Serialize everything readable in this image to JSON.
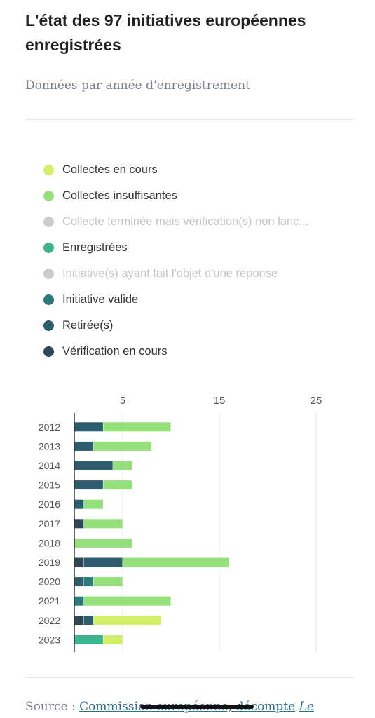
{
  "header": {
    "title": "L'état des 97 initiatives européennes enregistrées",
    "subtitle": "Données par année d'enregistrement"
  },
  "source": {
    "prefix": "Source : ",
    "link_text": "Commission européenne, décompte",
    "suffix": "Le"
  },
  "chart_data": {
    "type": "bar",
    "orientation": "horizontal",
    "stacked": true,
    "categories": [
      "2012",
      "2013",
      "2014",
      "2015",
      "2016",
      "2017",
      "2018",
      "2019",
      "2020",
      "2021",
      "2022",
      "2023"
    ],
    "xlim": [
      0,
      28
    ],
    "x_ticks": [
      5,
      15,
      25
    ],
    "grid": true,
    "legend_position": "top",
    "series": [
      {
        "name": "Vérification en cours",
        "color": "#2f4858",
        "active": true,
        "values": [
          0,
          0,
          0,
          0,
          0,
          1,
          0,
          1,
          0,
          0,
          1,
          0
        ]
      },
      {
        "name": "Retirée(s)",
        "color": "#2d5d6f",
        "active": true,
        "values": [
          3,
          2,
          4,
          3,
          1,
          0,
          0,
          4,
          1,
          0,
          1,
          0
        ]
      },
      {
        "name": "Initiative valide",
        "color": "#2b7b7a",
        "active": true,
        "values": [
          0,
          0,
          0,
          0,
          0,
          0,
          0,
          0,
          1,
          1,
          0,
          0
        ]
      },
      {
        "name": "Initiative(s) ayant fait l'objet d'une réponse",
        "color": "#cccccc",
        "active": false,
        "values": [
          0,
          0,
          0,
          0,
          0,
          0,
          0,
          0,
          0,
          0,
          0,
          0
        ]
      },
      {
        "name": "Enregistrées",
        "color": "#3bb48f",
        "active": true,
        "values": [
          0,
          0,
          0,
          0,
          0,
          0,
          0,
          0,
          0,
          0,
          0,
          3
        ]
      },
      {
        "name": "Collecte terminée mais vérification(s) non lancée(s)",
        "color": "#cccccc",
        "active": false,
        "values": [
          0,
          0,
          0,
          0,
          0,
          0,
          0,
          0,
          0,
          0,
          0,
          0
        ]
      },
      {
        "name": "Collectes insuffisantes",
        "color": "#95e07a",
        "active": true,
        "values": [
          7,
          6,
          2,
          3,
          2,
          4,
          6,
          11,
          3,
          9,
          0,
          0
        ]
      },
      {
        "name": "Collectes en cours",
        "color": "#d3f06b",
        "active": true,
        "values": [
          0,
          0,
          0,
          0,
          0,
          0,
          0,
          0,
          0,
          0,
          7,
          2
        ]
      }
    ]
  },
  "legend": [
    {
      "label": "Collectes en cours",
      "color": "#d3f06b",
      "active": true
    },
    {
      "label": "Collectes insuffisantes",
      "color": "#95e07a",
      "active": true
    },
    {
      "label": "Collecte terminée mais vérification(s) non lanc...",
      "color": "#cccccc",
      "active": false
    },
    {
      "label": "Enregistrées",
      "color": "#3bb48f",
      "active": true
    },
    {
      "label": "Initiative(s) ayant fait l'objet d'une réponse",
      "color": "#cccccc",
      "active": false
    },
    {
      "label": "Initiative valide",
      "color": "#2b7b7a",
      "active": true
    },
    {
      "label": "Retirée(s)",
      "color": "#2d5d6f",
      "active": true
    },
    {
      "label": "Vérification en cours",
      "color": "#2f4858",
      "active": true
    }
  ]
}
